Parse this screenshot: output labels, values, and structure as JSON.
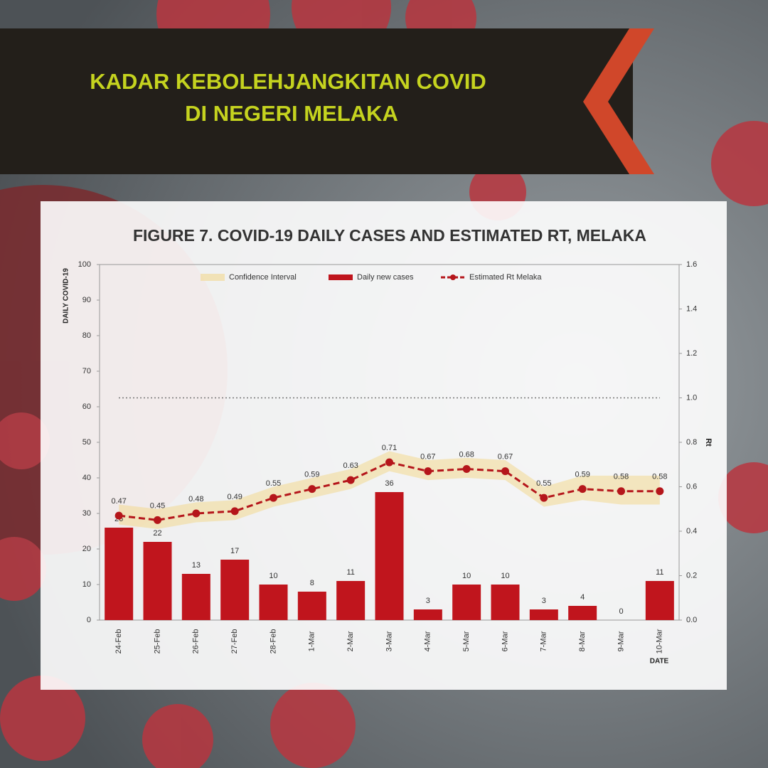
{
  "header": {
    "lines": [
      "KADAR KEBOLEHJANGKITAN COVID",
      "DI NEGERI MELAKA"
    ]
  },
  "chart_data": {
    "type": "bar-line",
    "title": "FIGURE 7. COVID-19 DAILY CASES AND ESTIMATED RT, MELAKA",
    "y_label": "DAILY COVID-19",
    "y2_label": "Rt",
    "x_label": "DATE",
    "categories": [
      "24-Feb",
      "25-Feb",
      "26-Feb",
      "27-Feb",
      "28-Feb",
      "1-Mar",
      "2-Mar",
      "3-Mar",
      "4-Mar",
      "5-Mar",
      "6-Mar",
      "7-Mar",
      "8-Mar",
      "9-Mar",
      "10-Mar"
    ],
    "ylim": [
      0,
      100
    ],
    "yticks": [
      0,
      10,
      20,
      30,
      40,
      50,
      60,
      70,
      80,
      90,
      100
    ],
    "y2lim": [
      0,
      1.6
    ],
    "y2ticks": [
      {
        "value": 0,
        "label": "0.0"
      },
      0.2,
      0.4,
      0.6,
      0.8,
      {
        "value": 1,
        "label": "1.0"
      },
      1.2,
      1.4,
      1.6
    ],
    "y2_reference": 1,
    "series": [
      {
        "name": "Daily new cases",
        "type": "bar",
        "color": "#c0151d",
        "values": [
          26,
          22,
          13,
          17,
          10,
          8,
          11,
          36,
          3,
          10,
          10,
          3,
          4,
          0,
          11
        ]
      },
      {
        "name": "Confidence Interval",
        "type": "band",
        "axis": "y2",
        "color": "#f2d98f",
        "lower": [
          0.43,
          0.41,
          0.44,
          0.45,
          0.51,
          0.55,
          0.59,
          0.67,
          0.63,
          0.64,
          0.63,
          0.51,
          0.54,
          0.52,
          0.52
        ],
        "upper": [
          0.52,
          0.5,
          0.53,
          0.54,
          0.6,
          0.64,
          0.68,
          0.76,
          0.72,
          0.73,
          0.72,
          0.6,
          0.65,
          0.65,
          0.65
        ]
      },
      {
        "name": "Estimated Rt Melaka",
        "type": "line",
        "axis": "y2",
        "color": "#b5161b",
        "values": [
          0.47,
          0.45,
          0.48,
          0.49,
          0.55,
          0.59,
          0.63,
          0.71,
          0.67,
          0.68,
          0.67,
          0.55,
          0.59,
          0.58,
          0.58
        ]
      }
    ]
  }
}
